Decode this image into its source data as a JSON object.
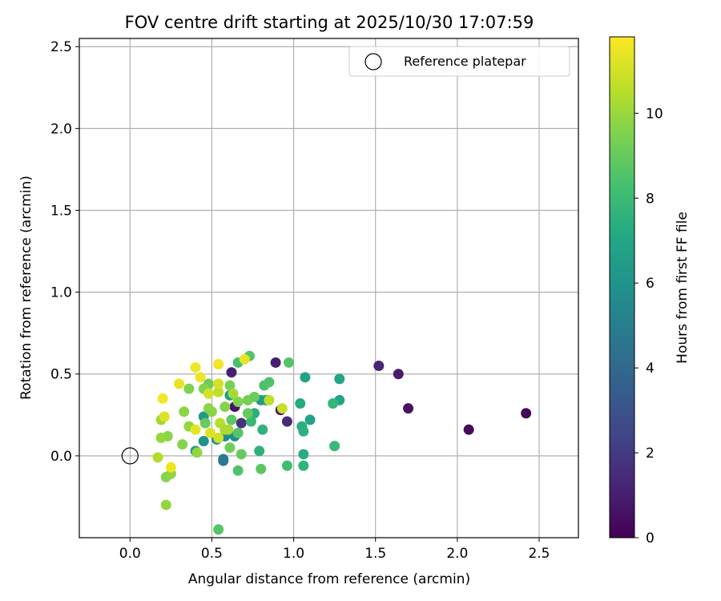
{
  "chart_data": {
    "type": "scatter",
    "title": "FOV centre drift starting at 2025/10/30 17:07:59",
    "xlabel": "Angular distance from reference (arcmin)",
    "ylabel": "Rotation from reference (arcmin)",
    "xlim": [
      -0.31,
      2.74
    ],
    "ylim": [
      -0.5,
      2.55
    ],
    "xticks": [
      0.0,
      0.5,
      1.0,
      1.5,
      2.0,
      2.5
    ],
    "xtick_labels": [
      "0.0",
      "0.5",
      "1.0",
      "1.5",
      "2.0",
      "2.5"
    ],
    "yticks": [
      0.0,
      0.5,
      1.0,
      1.5,
      2.0,
      2.5
    ],
    "ytick_labels": [
      "0.0",
      "0.5",
      "1.0",
      "1.5",
      "2.0",
      "2.5"
    ],
    "grid": true,
    "legend": {
      "position": "top-right",
      "entries": [
        {
          "label": "Reference platepar",
          "marker": "open-circle"
        }
      ]
    },
    "reference_point": {
      "x": 0.0,
      "y": 0.0
    },
    "colorbar": {
      "label": "Hours from first FF file",
      "colormap": "viridis",
      "range": [
        0,
        11.8
      ],
      "ticks": [
        0,
        2,
        4,
        6,
        8,
        10
      ],
      "tick_labels": [
        "0",
        "2",
        "4",
        "6",
        "8",
        "10"
      ]
    },
    "points": [
      {
        "x": 2.42,
        "y": 0.26,
        "c": 0.2
      },
      {
        "x": 2.07,
        "y": 0.16,
        "c": 0.3
      },
      {
        "x": 1.7,
        "y": 0.29,
        "c": 0.6
      },
      {
        "x": 1.64,
        "y": 0.5,
        "c": 0.9
      },
      {
        "x": 1.52,
        "y": 0.55,
        "c": 1.2
      },
      {
        "x": 0.89,
        "y": 0.57,
        "c": 1.0
      },
      {
        "x": 0.62,
        "y": 0.51,
        "c": 1.0
      },
      {
        "x": 0.96,
        "y": 0.21,
        "c": 1.4
      },
      {
        "x": 0.68,
        "y": 0.2,
        "c": 1.7
      },
      {
        "x": 0.92,
        "y": 0.28,
        "c": 0.8
      },
      {
        "x": 0.64,
        "y": 0.3,
        "c": 0.6
      },
      {
        "x": 0.57,
        "y": -0.03,
        "c": 4.6
      },
      {
        "x": 0.57,
        "y": -0.02,
        "c": 4.8
      },
      {
        "x": 0.58,
        "y": 0.12,
        "c": 5.6
      },
      {
        "x": 0.64,
        "y": 0.12,
        "c": 5.8
      },
      {
        "x": 0.45,
        "y": 0.09,
        "c": 6.0
      },
      {
        "x": 0.4,
        "y": 0.03,
        "c": 6.2
      },
      {
        "x": 0.53,
        "y": 0.1,
        "c": 6.0
      },
      {
        "x": 0.45,
        "y": 0.24,
        "c": 6.3
      },
      {
        "x": 0.61,
        "y": 0.37,
        "c": 6.5
      },
      {
        "x": 0.8,
        "y": 0.34,
        "c": 6.4
      },
      {
        "x": 0.83,
        "y": 0.34,
        "c": 6.6
      },
      {
        "x": 1.07,
        "y": 0.48,
        "c": 6.8
      },
      {
        "x": 1.28,
        "y": 0.34,
        "c": 6.9
      },
      {
        "x": 1.28,
        "y": 0.47,
        "c": 7.0
      },
      {
        "x": 1.1,
        "y": 0.22,
        "c": 6.8
      },
      {
        "x": 1.04,
        "y": 0.32,
        "c": 7.2
      },
      {
        "x": 1.05,
        "y": 0.18,
        "c": 7.4
      },
      {
        "x": 1.06,
        "y": 0.15,
        "c": 7.5
      },
      {
        "x": 1.06,
        "y": 0.01,
        "c": 7.3
      },
      {
        "x": 1.06,
        "y": -0.06,
        "c": 7.6
      },
      {
        "x": 1.24,
        "y": 0.32,
        "c": 7.8
      },
      {
        "x": 1.25,
        "y": 0.06,
        "c": 7.9
      },
      {
        "x": 0.96,
        "y": -0.06,
        "c": 8.1
      },
      {
        "x": 0.79,
        "y": 0.03,
        "c": 7.5
      },
      {
        "x": 0.81,
        "y": 0.16,
        "c": 7.6
      },
      {
        "x": 0.76,
        "y": 0.26,
        "c": 7.4
      },
      {
        "x": 0.74,
        "y": 0.21,
        "c": 7.9
      },
      {
        "x": 0.66,
        "y": 0.57,
        "c": 8.3
      },
      {
        "x": 0.73,
        "y": 0.61,
        "c": 8.6
      },
      {
        "x": 0.97,
        "y": 0.57,
        "c": 8.6
      },
      {
        "x": 0.82,
        "y": 0.43,
        "c": 8.4
      },
      {
        "x": 0.85,
        "y": 0.45,
        "c": 8.5
      },
      {
        "x": 0.66,
        "y": -0.09,
        "c": 8.5
      },
      {
        "x": 0.8,
        "y": -0.08,
        "c": 8.7
      },
      {
        "x": 0.54,
        "y": -0.45,
        "c": 8.6
      },
      {
        "x": 0.66,
        "y": 0.14,
        "c": 8.6
      },
      {
        "x": 0.68,
        "y": 0.01,
        "c": 9.0
      },
      {
        "x": 0.61,
        "y": 0.05,
        "c": 9.2
      },
      {
        "x": 0.62,
        "y": 0.22,
        "c": 8.8
      },
      {
        "x": 0.72,
        "y": 0.26,
        "c": 9.0
      },
      {
        "x": 0.72,
        "y": 0.34,
        "c": 9.3
      },
      {
        "x": 0.76,
        "y": 0.36,
        "c": 9.1
      },
      {
        "x": 0.66,
        "y": 0.33,
        "c": 9.5
      },
      {
        "x": 0.58,
        "y": 0.3,
        "c": 9.6
      },
      {
        "x": 0.61,
        "y": 0.43,
        "c": 9.4
      },
      {
        "x": 0.48,
        "y": 0.44,
        "c": 9.2
      },
      {
        "x": 0.45,
        "y": 0.41,
        "c": 9.6
      },
      {
        "x": 0.46,
        "y": 0.2,
        "c": 9.0
      },
      {
        "x": 0.48,
        "y": 0.29,
        "c": 9.8
      },
      {
        "x": 0.5,
        "y": 0.27,
        "c": 9.7
      },
      {
        "x": 0.36,
        "y": 0.18,
        "c": 9.9
      },
      {
        "x": 0.36,
        "y": 0.41,
        "c": 9.5
      },
      {
        "x": 0.33,
        "y": 0.27,
        "c": 9.8
      },
      {
        "x": 0.32,
        "y": 0.07,
        "c": 9.6
      },
      {
        "x": 0.41,
        "y": 0.02,
        "c": 9.9
      },
      {
        "x": 0.23,
        "y": 0.12,
        "c": 9.7
      },
      {
        "x": 0.19,
        "y": 0.11,
        "c": 9.9
      },
      {
        "x": 0.19,
        "y": 0.22,
        "c": 10.1
      },
      {
        "x": 0.22,
        "y": -0.13,
        "c": 9.6
      },
      {
        "x": 0.25,
        "y": -0.11,
        "c": 9.8
      },
      {
        "x": 0.22,
        "y": -0.3,
        "c": 9.9
      },
      {
        "x": 0.17,
        "y": -0.01,
        "c": 10.4
      },
      {
        "x": 0.6,
        "y": 0.16,
        "c": 10.2
      },
      {
        "x": 0.55,
        "y": 0.2,
        "c": 10.5
      },
      {
        "x": 0.54,
        "y": 0.39,
        "c": 10.6
      },
      {
        "x": 0.58,
        "y": 0.16,
        "c": 10.3
      },
      {
        "x": 0.63,
        "y": 0.38,
        "c": 10.2
      },
      {
        "x": 0.85,
        "y": 0.34,
        "c": 10.6
      },
      {
        "x": 0.93,
        "y": 0.29,
        "c": 10.8
      },
      {
        "x": 0.48,
        "y": 0.38,
        "c": 11.0
      },
      {
        "x": 0.54,
        "y": 0.44,
        "c": 11.0
      },
      {
        "x": 0.49,
        "y": 0.14,
        "c": 11.2
      },
      {
        "x": 0.54,
        "y": 0.11,
        "c": 11.0
      },
      {
        "x": 0.4,
        "y": 0.16,
        "c": 11.3
      },
      {
        "x": 0.3,
        "y": 0.44,
        "c": 11.4
      },
      {
        "x": 0.43,
        "y": 0.48,
        "c": 11.5
      },
      {
        "x": 0.4,
        "y": 0.54,
        "c": 11.5
      },
      {
        "x": 0.54,
        "y": 0.56,
        "c": 11.6
      },
      {
        "x": 0.7,
        "y": 0.59,
        "c": 11.4
      },
      {
        "x": 0.2,
        "y": 0.35,
        "c": 11.6
      },
      {
        "x": 0.21,
        "y": 0.24,
        "c": 11.2
      },
      {
        "x": 0.25,
        "y": -0.07,
        "c": 11.5
      }
    ]
  }
}
